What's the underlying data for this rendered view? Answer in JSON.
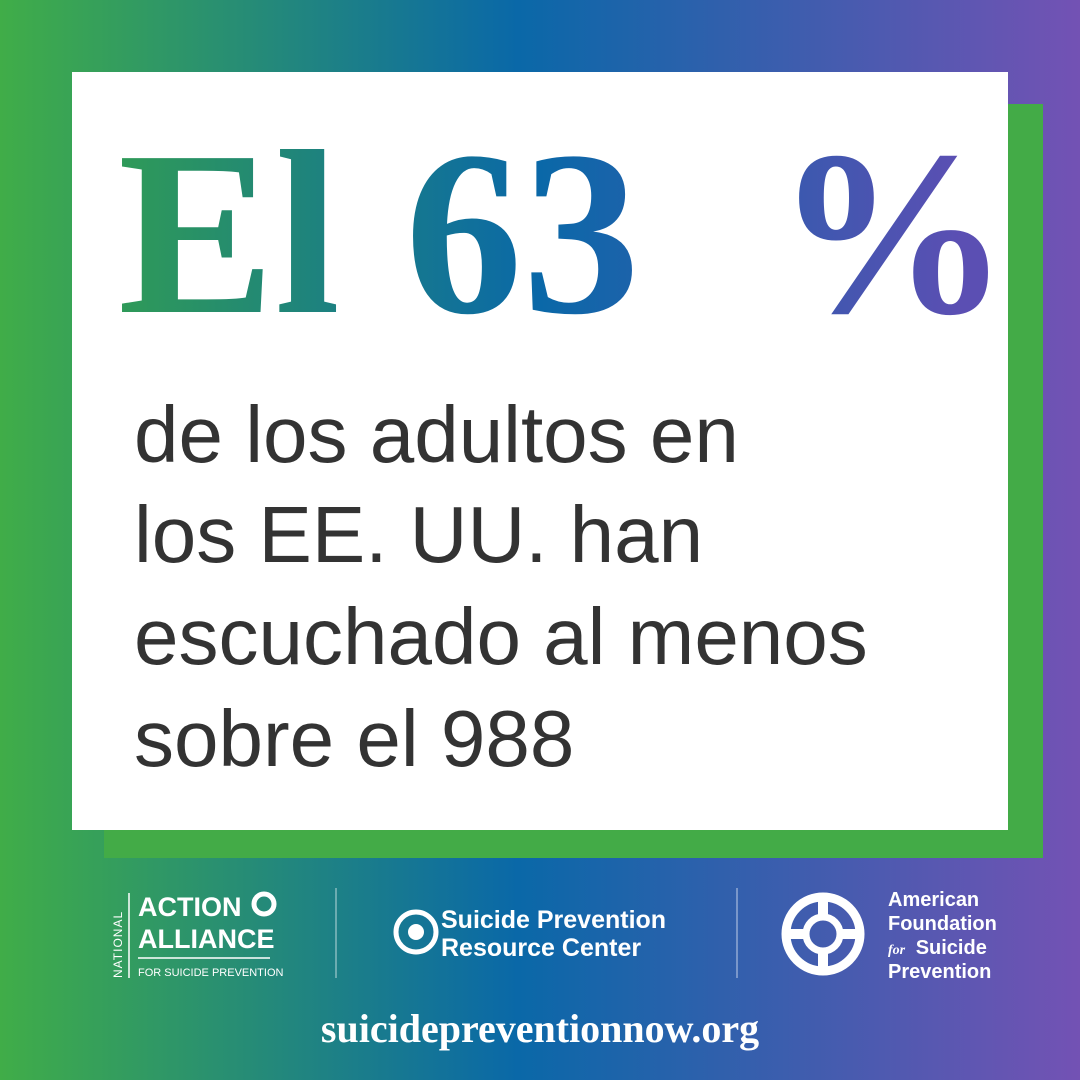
{
  "headline": {
    "parts": [
      "El",
      "63",
      "%"
    ]
  },
  "body": {
    "lines": [
      "de los adultos en",
      "los EE. UU. han",
      "escuchado al menos",
      "sobre el 988"
    ]
  },
  "logos": {
    "action_alliance": {
      "side": "NATIONAL",
      "lines": [
        "ACTION",
        "ALLIANCE"
      ],
      "tagline": "FOR SUICIDE PREVENTION"
    },
    "sprc": {
      "lines": [
        "Suicide Prevention",
        "Resource Center"
      ]
    },
    "afsp": {
      "lines": [
        "American",
        "Foundation"
      ],
      "for": "for",
      "suicide": "Suicide",
      "last": "Prevention"
    }
  },
  "footer": {
    "url": "suicidepreventionnow.org"
  }
}
